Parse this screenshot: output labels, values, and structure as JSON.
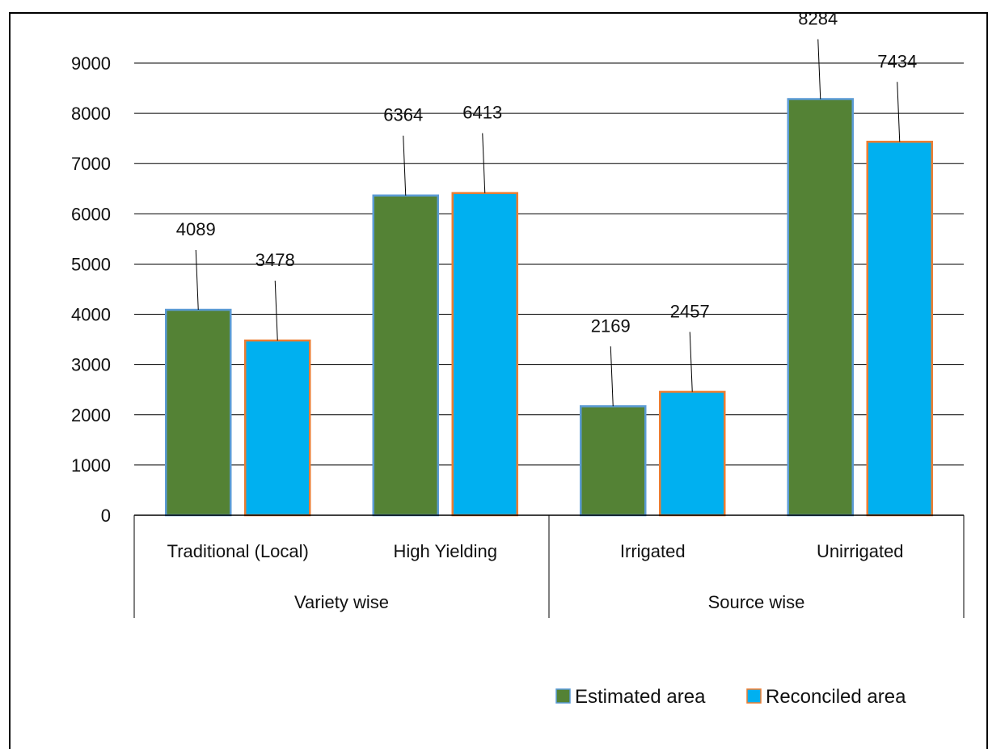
{
  "chart_data": {
    "type": "bar",
    "title": "",
    "xlabel": "",
    "ylabel": "",
    "ylim": [
      0,
      9000
    ],
    "yticks": [
      0,
      1000,
      2000,
      3000,
      4000,
      5000,
      6000,
      7000,
      8000,
      9000
    ],
    "ytick_labels": [
      "0",
      "1000",
      "2000",
      "3000",
      "4000",
      "5000",
      "6000",
      "7000",
      "8000",
      "9000"
    ],
    "grid": true,
    "legend_position": "bottom-right",
    "categories": [
      "Traditional (Local)",
      "High Yielding",
      "Irrigated",
      "Unirrigated"
    ],
    "groups": [
      {
        "label": "Variety wise",
        "categories": [
          "Traditional (Local)",
          "High Yielding"
        ]
      },
      {
        "label": "Source wise",
        "categories": [
          "Irrigated",
          "Unirrigated"
        ]
      }
    ],
    "series": [
      {
        "name": "Estimated area",
        "color": "#548235",
        "edge_color": "#5b9bd5",
        "values": [
          4089,
          6364,
          2169,
          8284
        ]
      },
      {
        "name": "Reconciled area",
        "color": "#00b0f0",
        "edge_color": "#ed7d31",
        "values": [
          3478,
          6413,
          2457,
          7434
        ]
      }
    ],
    "data_labels": true
  }
}
